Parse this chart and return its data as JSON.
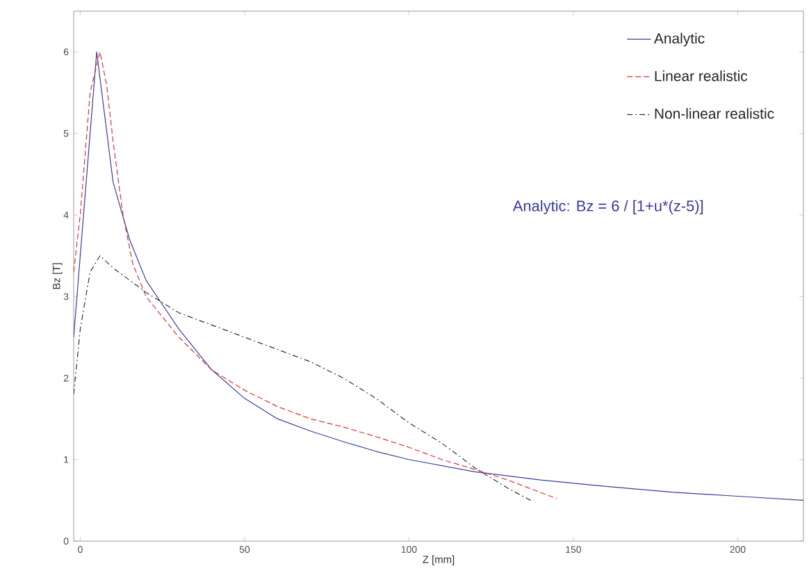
{
  "chart_data": {
    "type": "line",
    "xlabel": "Z [mm]",
    "ylabel": "Bz [T]",
    "xlim": [
      -2,
      220
    ],
    "ylim": [
      0,
      6.5
    ],
    "xticks": [
      0,
      50,
      100,
      150,
      200
    ],
    "yticks": [
      0,
      1,
      2,
      3,
      4,
      5,
      6
    ],
    "legend": "top right",
    "grid": false,
    "annotations": [
      "Analytic: Bz = 6 / [1+u*(z-5)]"
    ],
    "series": [
      {
        "name": "Analytic",
        "color": "#3a3aa0",
        "line_style": "solid",
        "x": [
          -2,
          5,
          10,
          15,
          20,
          25,
          30,
          40,
          50,
          60,
          70,
          80,
          90,
          100,
          120,
          140,
          160,
          180,
          200,
          220
        ],
        "values": [
          2.5,
          6,
          4.4,
          3.7,
          3.2,
          2.9,
          2.6,
          2.1,
          1.75,
          1.5,
          1.35,
          1.22,
          1.1,
          1.0,
          0.85,
          0.75,
          0.67,
          0.6,
          0.55,
          0.5
        ]
      },
      {
        "name": "Linear realistic",
        "color": "#e03030",
        "line_style": "dashed",
        "x": [
          -2,
          0,
          3,
          6,
          8,
          10,
          13,
          16,
          20,
          25,
          30,
          40,
          50,
          60,
          70,
          80,
          90,
          100,
          110,
          120,
          130,
          145
        ],
        "values": [
          3.3,
          4,
          5.5,
          6,
          5.6,
          4.9,
          4.0,
          3.4,
          3.0,
          2.75,
          2.5,
          2.1,
          1.85,
          1.65,
          1.5,
          1.4,
          1.28,
          1.15,
          1.0,
          0.88,
          0.75,
          0.52
        ]
      },
      {
        "name": "Non-linear realistic",
        "color": "#333333",
        "line_style": "dashdot",
        "x": [
          -2,
          0,
          3,
          6,
          10,
          20,
          30,
          40,
          50,
          60,
          70,
          80,
          90,
          100,
          110,
          120,
          130,
          137
        ],
        "values": [
          1.8,
          2.6,
          3.3,
          3.5,
          3.35,
          3.05,
          2.8,
          2.65,
          2.5,
          2.35,
          2.2,
          2.0,
          1.75,
          1.45,
          1.2,
          0.9,
          0.65,
          0.5
        ]
      }
    ]
  }
}
